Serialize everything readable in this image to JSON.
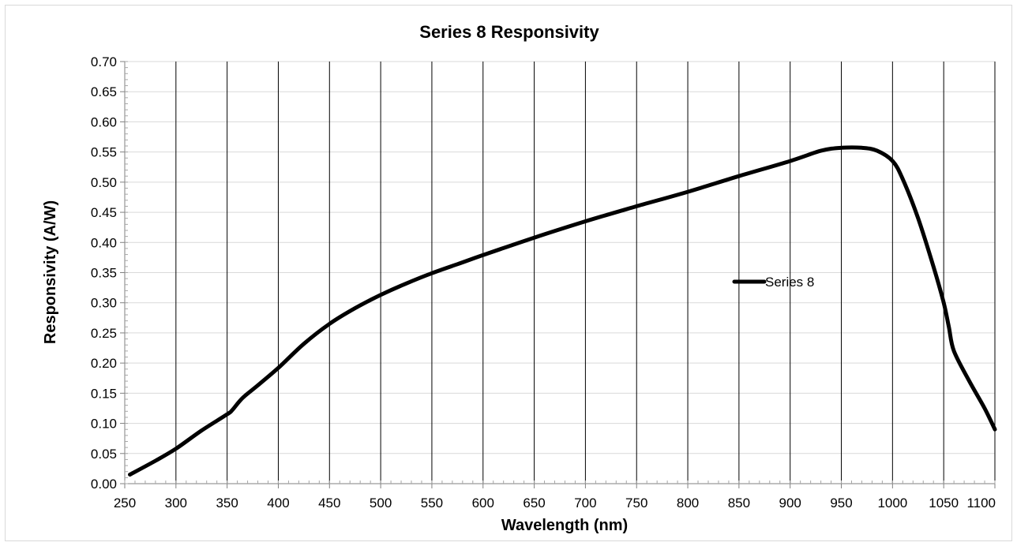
{
  "chart_data": {
    "type": "line",
    "title": "Series 8 Responsivity",
    "xlabel": "Wavelength (nm)",
    "ylabel": "Responsivity (A/W)",
    "xlim": [
      250,
      1100
    ],
    "ylim": [
      0,
      0.7
    ],
    "x_ticks": [
      "250",
      "300",
      "350",
      "400",
      "450",
      "500",
      "550",
      "600",
      "650",
      "700",
      "750",
      "800",
      "850",
      "900",
      "950",
      "1000",
      "1050",
      "1100"
    ],
    "y_ticks": [
      "0.00",
      "0.05",
      "0.10",
      "0.15",
      "0.20",
      "0.25",
      "0.30",
      "0.35",
      "0.40",
      "0.45",
      "0.50",
      "0.55",
      "0.60",
      "0.65",
      "0.70"
    ],
    "grid": "vertical",
    "legend_position": "right-middle",
    "series": [
      {
        "name": "Series 8",
        "color": "#000000",
        "x": [
          255,
          280,
          300,
          325,
          350,
          355,
          365,
          380,
          400,
          425,
          450,
          475,
          500,
          525,
          550,
          575,
          600,
          650,
          700,
          750,
          800,
          850,
          900,
          930,
          950,
          970,
          985,
          1000,
          1010,
          1025,
          1040,
          1050,
          1055,
          1060,
          1075,
          1090,
          1100
        ],
        "y": [
          0.015,
          0.038,
          0.058,
          0.088,
          0.115,
          0.122,
          0.142,
          0.163,
          0.192,
          0.232,
          0.265,
          0.291,
          0.313,
          0.332,
          0.349,
          0.364,
          0.379,
          0.408,
          0.435,
          0.46,
          0.484,
          0.51,
          0.535,
          0.552,
          0.557,
          0.557,
          0.552,
          0.535,
          0.505,
          0.44,
          0.36,
          0.3,
          0.26,
          0.22,
          0.17,
          0.125,
          0.09
        ]
      }
    ]
  }
}
